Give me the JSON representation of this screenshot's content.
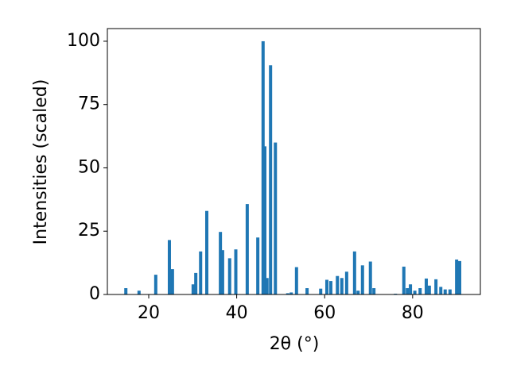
{
  "chart_data": {
    "type": "bar",
    "xlabel": "2θ (°)",
    "ylabel": "Intensities (scaled)",
    "color": "#1f77b4",
    "x": [
      14.8,
      17.8,
      21.6,
      24.7,
      25.4,
      30.1,
      30.7,
      31.8,
      33.2,
      36.3,
      36.8,
      38.4,
      39.8,
      42.4,
      44.8,
      46.0,
      46.4,
      46.9,
      47.7,
      48.8,
      51.6,
      52.4,
      53.6,
      56.0,
      59.1,
      60.5,
      61.4,
      62.9,
      63.9,
      65.0,
      66.8,
      67.6,
      68.6,
      70.4,
      71.2,
      76.1,
      78.0,
      78.8,
      79.5,
      80.5,
      81.7,
      83.1,
      83.8,
      85.3,
      86.4,
      87.4,
      88.5,
      90.0,
      90.7
    ],
    "values": [
      2.5,
      1.5,
      7.8,
      21.5,
      10,
      4,
      8.5,
      17,
      33,
      24.7,
      17.5,
      14.3,
      17.8,
      35.7,
      22.5,
      100,
      58.5,
      6.5,
      90.5,
      60,
      0.5,
      0.8,
      10.8,
      2.5,
      2.3,
      5.8,
      5.3,
      7.3,
      6.5,
      9,
      17,
      1.5,
      11.5,
      13,
      2.5,
      0.3,
      11,
      2.5,
      4,
      1.5,
      2.5,
      6.3,
      3.5,
      6,
      3,
      2,
      2,
      13.8,
      13.2
    ],
    "xlim": [
      10.6,
      95.4
    ],
    "ylim": [
      0,
      105
    ],
    "xticks": [
      20,
      40,
      60,
      80
    ],
    "yticks": [
      0,
      25,
      50,
      75,
      100
    ]
  }
}
